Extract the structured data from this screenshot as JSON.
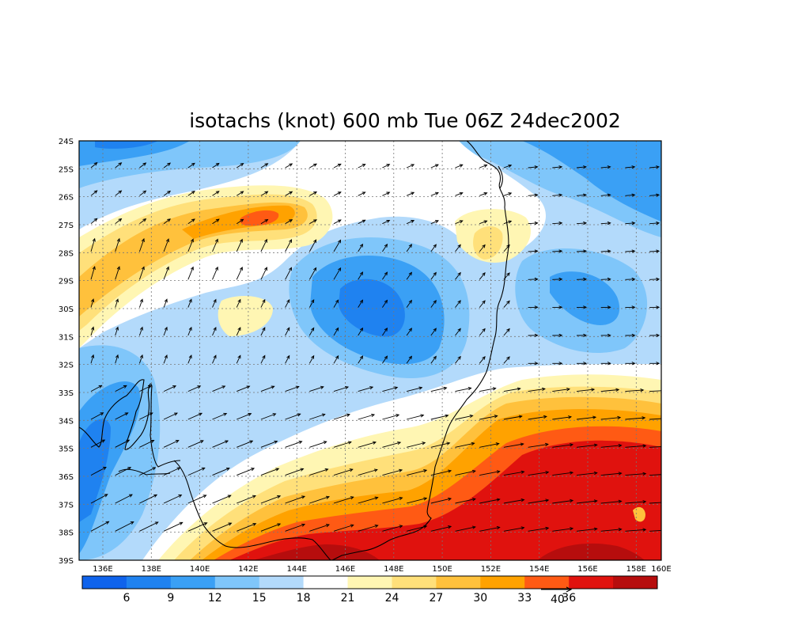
{
  "title": "isotachs (knot) 600 mb Tue 06Z 24dec2002",
  "lat_labels": [
    "24S",
    "25S",
    "26S",
    "27S",
    "28S",
    "29S",
    "30S",
    "31S",
    "32S",
    "33S",
    "34S",
    "35S",
    "36S",
    "37S",
    "38S",
    "39S"
  ],
  "lon_labels": [
    "136E",
    "138E",
    "140E",
    "142E",
    "144E",
    "146E",
    "148E",
    "150E",
    "152E",
    "154E",
    "156E",
    "158E",
    "160E"
  ],
  "colorbar": {
    "colors": [
      "#0f63ec",
      "#1f82f0",
      "#3aa0f5",
      "#7fc6fa",
      "#b3dafb",
      "#ffffff",
      "#fff6b3",
      "#ffe07a",
      "#ffc13c",
      "#ffa200",
      "#ff5a14",
      "#e0120e",
      "#b60d0d"
    ],
    "labels": [
      "6",
      "9",
      "12",
      "15",
      "18",
      "21",
      "24",
      "27",
      "30",
      "33",
      "36"
    ]
  },
  "reference_vector": {
    "label": "40"
  }
}
